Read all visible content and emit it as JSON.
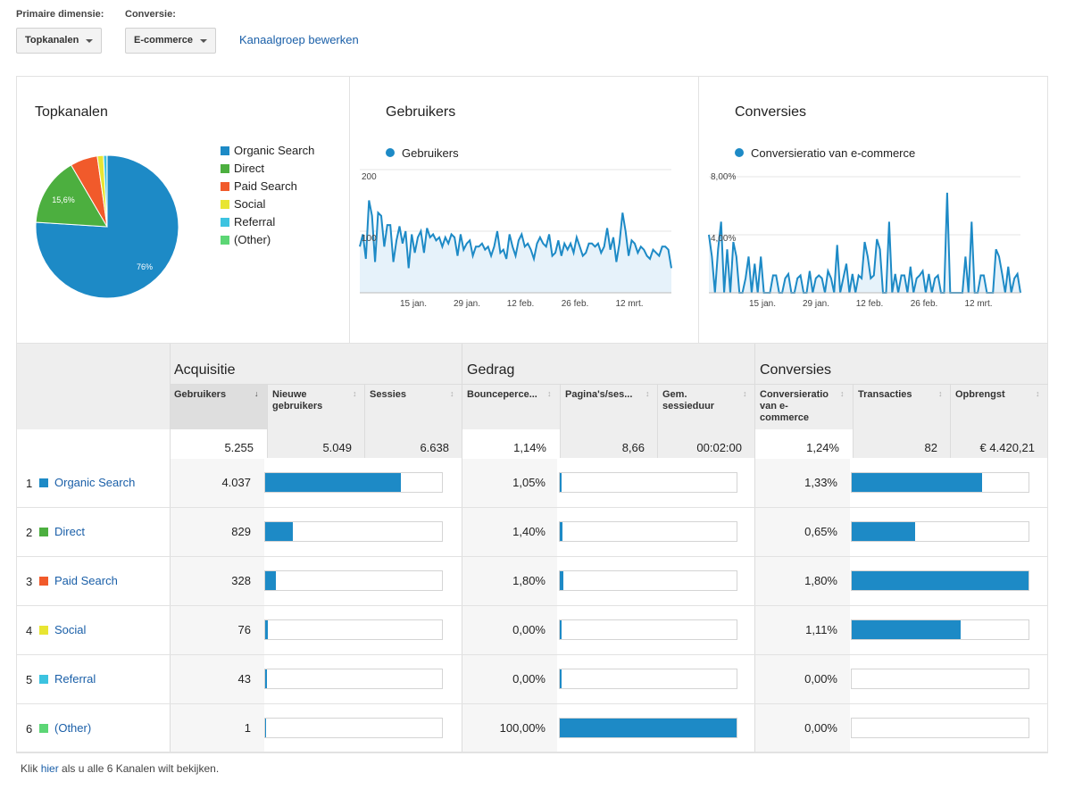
{
  "controls": {
    "primary_label": "Primaire dimensie:",
    "primary_value": "Topkanalen",
    "conversion_label": "Conversie:",
    "conversion_value": "E-commerce",
    "edit_link": "Kanaalgroep bewerken"
  },
  "pie": {
    "title": "Topkanalen",
    "slice_labels": [
      "76%",
      "15,6%"
    ],
    "legend": [
      {
        "name": "Organic Search",
        "color": "#1d8ac6"
      },
      {
        "name": "Direct",
        "color": "#4caf3f"
      },
      {
        "name": "Paid Search",
        "color": "#f15a2b"
      },
      {
        "name": "Social",
        "color": "#e8e532"
      },
      {
        "name": "Referral",
        "color": "#3cc3e0"
      },
      {
        "name": "(Other)",
        "color": "#5cd675"
      }
    ]
  },
  "users_chart": {
    "title": "Gebruikers",
    "series_label": "Gebruikers",
    "y_ticks": [
      "200",
      "100"
    ],
    "x_ticks": [
      "15 jan.",
      "29 jan.",
      "12 feb.",
      "26 feb.",
      "12 mrt."
    ]
  },
  "conv_chart": {
    "title": "Conversies",
    "series_label": "Conversieratio van e-commerce",
    "y_ticks": [
      "8,00%",
      "4,00%"
    ],
    "x_ticks": [
      "15 jan.",
      "29 jan.",
      "12 feb.",
      "26 feb.",
      "12 mrt."
    ]
  },
  "chart_data": [
    {
      "type": "pie",
      "title": "Topkanalen",
      "labels": [
        "Organic Search",
        "Direct",
        "Paid Search",
        "Social",
        "Referral",
        "(Other)"
      ],
      "values": [
        76.0,
        15.6,
        6.2,
        1.4,
        0.8,
        0.02
      ]
    },
    {
      "type": "area",
      "title": "Gebruikers",
      "ylim": [
        0,
        200
      ],
      "x_ticks": [
        "15 jan.",
        "29 jan.",
        "12 feb.",
        "26 feb.",
        "12 mrt."
      ],
      "series": [
        {
          "name": "Gebruikers",
          "values": [
            75,
            95,
            55,
            150,
            125,
            50,
            130,
            125,
            75,
            110,
            110,
            50,
            85,
            108,
            80,
            100,
            40,
            95,
            65,
            90,
            100,
            65,
            105,
            90,
            95,
            85,
            90,
            75,
            90,
            80,
            95,
            90,
            60,
            95,
            70,
            80,
            85,
            60,
            75,
            75,
            80,
            70,
            75,
            60,
            75,
            100,
            65,
            70,
            55,
            95,
            75,
            60,
            85,
            95,
            75,
            80,
            70,
            55,
            80,
            90,
            80,
            75,
            95,
            60,
            65,
            85,
            60,
            80,
            70,
            80,
            65,
            90,
            75,
            60,
            65,
            80,
            80,
            75,
            80,
            65,
            75,
            105,
            70,
            90,
            50,
            80,
            130,
            100,
            60,
            85,
            80,
            65,
            75,
            70,
            60,
            55,
            70,
            65,
            60,
            75,
            75,
            70,
            40
          ]
        }
      ]
    },
    {
      "type": "area",
      "title": "Conversies",
      "ylim": [
        0,
        8
      ],
      "x_ticks": [
        "15 jan.",
        "29 jan.",
        "12 feb.",
        "26 feb.",
        "12 mrt."
      ],
      "series": [
        {
          "name": "Conversieratio van e-commerce",
          "values": [
            4,
            2.5,
            0,
            3,
            4.9,
            0,
            3,
            0,
            3.5,
            2.5,
            0,
            0,
            1,
            2.5,
            0,
            2,
            0,
            2.5,
            0,
            0,
            0,
            1.2,
            1.2,
            0,
            0,
            1,
            1.3,
            0,
            0,
            1,
            1.2,
            0,
            0,
            1.5,
            0,
            1,
            1.2,
            1,
            0,
            1.5,
            1,
            0,
            3.3,
            0,
            1,
            2,
            0,
            1.3,
            0,
            1.2,
            1,
            3.5,
            2.5,
            1,
            1.2,
            3.7,
            3,
            0,
            0,
            4.9,
            0,
            1.3,
            0,
            1.2,
            1.2,
            0,
            1.8,
            0,
            1,
            1.2,
            1.5,
            0,
            1.3,
            0,
            1,
            1.2,
            0,
            0,
            6.9,
            0,
            0,
            0,
            0,
            0,
            2.5,
            0,
            4.9,
            0,
            0,
            1.2,
            1.2,
            0,
            0,
            0,
            3,
            2.5,
            1.3,
            0,
            1.8,
            0,
            1,
            1.3,
            0
          ]
        }
      ]
    }
  ],
  "table": {
    "groups": [
      "Acquisitie",
      "Gedrag",
      "Conversies"
    ],
    "columns": [
      "Gebruikers",
      "Nieuwe gebruikers",
      "Sessies",
      "Bounceperce...",
      "Pagina's/ses...",
      "Gem. sessieduur",
      "Conversieratio van e-commerce",
      "Transacties",
      "Opbrengst"
    ],
    "sort_mark": "↓",
    "sort_mark_inactive": "↕",
    "totals": [
      "5.255",
      "5.049",
      "6.638",
      "1,14%",
      "8,66",
      "00:02:00",
      "1,24%",
      "82",
      "€ 4.420,21"
    ],
    "rows": [
      {
        "rank": "1",
        "name": "Organic Search",
        "color": "#1d8ac6",
        "users": "4.037",
        "users_pct": 76.8,
        "bounce": "1,05%",
        "bounce_pct": 1.05,
        "conv": "1,33%",
        "conv_pct": 73.9
      },
      {
        "rank": "2",
        "name": "Direct",
        "color": "#4caf3f",
        "users": "829",
        "users_pct": 15.8,
        "bounce": "1,40%",
        "bounce_pct": 1.4,
        "conv": "0,65%",
        "conv_pct": 36.1
      },
      {
        "rank": "3",
        "name": "Paid Search",
        "color": "#f15a2b",
        "users": "328",
        "users_pct": 6.2,
        "bounce": "1,80%",
        "bounce_pct": 1.8,
        "conv": "1,80%",
        "conv_pct": 100
      },
      {
        "rank": "4",
        "name": "Social",
        "color": "#e8e532",
        "users": "76",
        "users_pct": 1.4,
        "bounce": "0,00%",
        "bounce_pct": 0,
        "conv": "1,11%",
        "conv_pct": 61.7
      },
      {
        "rank": "5",
        "name": "Referral",
        "color": "#3cc3e0",
        "users": "43",
        "users_pct": 0.8,
        "bounce": "0,00%",
        "bounce_pct": 0,
        "conv": "0,00%",
        "conv_pct": 0
      },
      {
        "rank": "6",
        "name": "(Other)",
        "color": "#5cd675",
        "users": "1",
        "users_pct": 0.02,
        "bounce": "100,00%",
        "bounce_pct": 100,
        "conv": "0,00%",
        "conv_pct": 0
      }
    ]
  },
  "footer": {
    "prefix": "Klik",
    "link": "hier",
    "suffix": "als u alle 6 Kanalen wilt bekijken."
  }
}
